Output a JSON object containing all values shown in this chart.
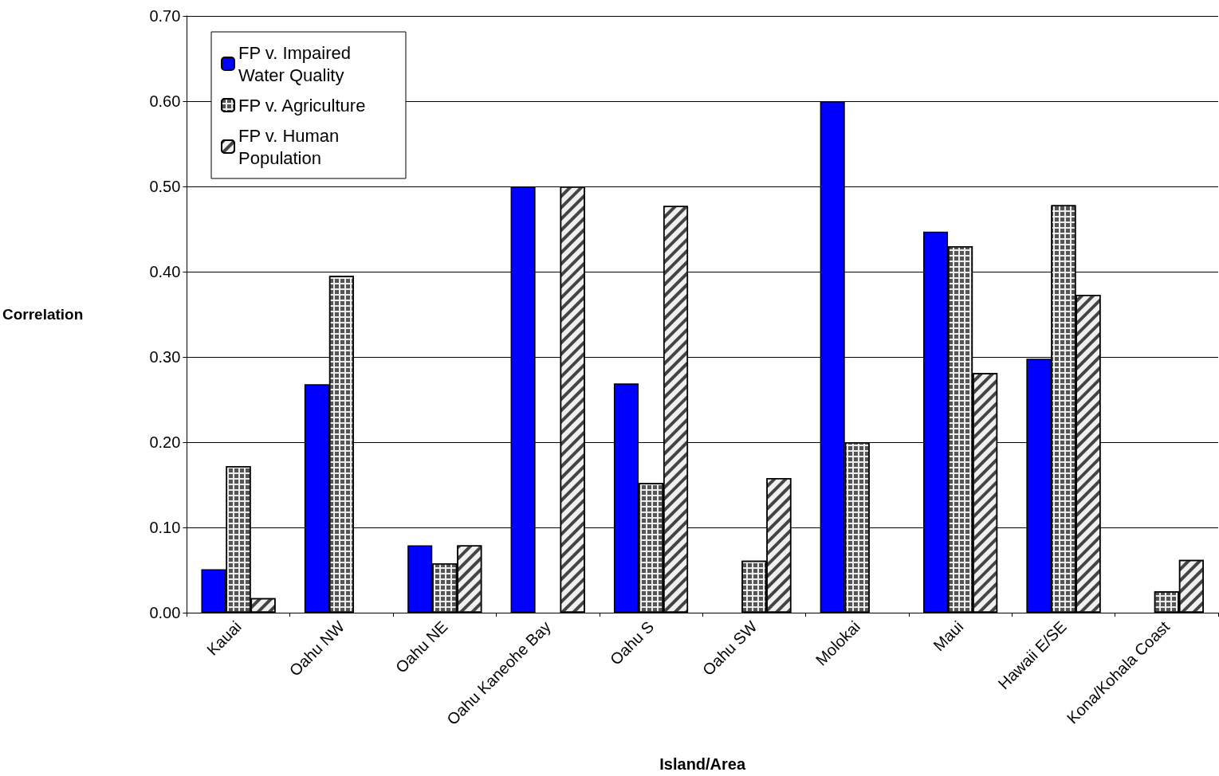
{
  "chart_data": {
    "type": "bar",
    "xlabel": "Island/Area",
    "ylabel": "Correlation",
    "categories": [
      "Kauai",
      "Oahu NW",
      "Oahu NE",
      "Oahu Kaneohe Bay",
      "Oahu S",
      "Oahu SW",
      "Molokai",
      "Maui",
      "Hawaii E/SE",
      "Kona/Kohala Coast"
    ],
    "series": [
      {
        "name": "FP v. Impaired Water Quality",
        "color": "#0000ff",
        "values": [
          0.051,
          0.268,
          0.079,
          0.5,
          0.269,
          null,
          0.6,
          0.447,
          0.298,
          null
        ]
      },
      {
        "name": "FP v. Agriculture",
        "color": "#ececec",
        "values": [
          0.172,
          0.395,
          0.058,
          null,
          0.152,
          0.061,
          0.2,
          0.43,
          0.478,
          0.025
        ]
      },
      {
        "name": "FP v. Human Population",
        "color": "#f0f0f0",
        "values": [
          0.017,
          null,
          0.079,
          0.5,
          0.477,
          0.158,
          null,
          0.281,
          0.373,
          0.062
        ]
      }
    ],
    "ylim": [
      0,
      0.7
    ],
    "yticks": [
      {
        "value": 0,
        "label": "0.00"
      },
      {
        "value": 0.1,
        "label": "0.10"
      },
      {
        "value": 0.2,
        "label": "0.20"
      },
      {
        "value": 0.3,
        "label": "0.30"
      },
      {
        "value": 0.4,
        "label": "0.40"
      },
      {
        "value": 0.5,
        "label": "0.50"
      },
      {
        "value": 0.6,
        "label": "0.60"
      },
      {
        "value": 0.7,
        "label": "0.70"
      }
    ],
    "grid": "y",
    "legend": "top left"
  }
}
